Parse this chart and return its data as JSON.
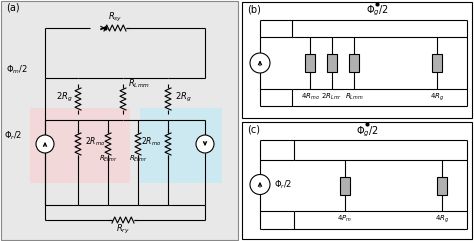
{
  "bg_main": "#e8e8e8",
  "white": "#ffffff",
  "black": "#000000",
  "pink_bg": "#f2d8d8",
  "blue_bg": "#cce8f0",
  "resistor_fill": "#b0b0b0",
  "labels": {
    "a": "(a)",
    "b": "(b)",
    "c": "(c)",
    "Rsy": "$R_{sy}$",
    "Rg_left": "$2R_g$",
    "Rg_right": "$2R_g$",
    "RLmm": "$R_{Lmm}$",
    "Phim2": "$\\Phi_m/2$",
    "Phir2": "$\\Phi_r/2$",
    "Rmo_left": "$2R_{mo}$",
    "REfmr_left": "$R_{Efmr}$",
    "REfmr_right": "$R_{Efmr}$",
    "Rmo_right": "$2R_{mo}$",
    "Rry": "$R_{ry}$",
    "b_Phig2": "$\\Phi_g/2$",
    "b_4Rmo": "$4R_{mo}$",
    "b_2RLmr": "$2R_{Lmr}$",
    "b_RLmm": "$R_{Lmm}$",
    "b_4Rg": "$4R_g$",
    "c_Phig2": "$\\Phi_g/2$",
    "c_Phir2": "$\\Phi_r/2$",
    "c_4Pm": "$4P_m$",
    "c_4Rg": "$4R_g$"
  }
}
